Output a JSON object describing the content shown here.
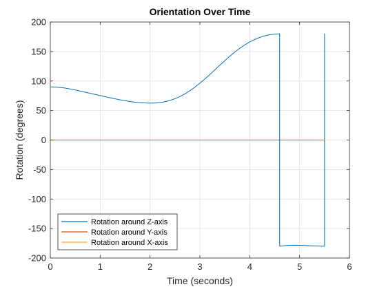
{
  "chart_data": {
    "type": "line",
    "title": "Orientation Over Time",
    "xlabel": "Time (seconds)",
    "ylabel": "Rotation (degrees)",
    "xlim": [
      0,
      6
    ],
    "ylim": [
      -200,
      200
    ],
    "xticks": [
      0,
      1,
      2,
      3,
      4,
      5,
      6
    ],
    "yticks": [
      -200,
      -150,
      -100,
      -50,
      0,
      50,
      100,
      150,
      200
    ],
    "grid": true,
    "legend_position": "bottom-left",
    "series": [
      {
        "name": "Rotation around Z-axis",
        "color": "#0072BD",
        "x": [
          0,
          0.1,
          0.2,
          0.3,
          0.4,
          0.5,
          0.6,
          0.7,
          0.8,
          0.9,
          1.0,
          1.1,
          1.2,
          1.3,
          1.4,
          1.5,
          1.6,
          1.7,
          1.8,
          1.9,
          2.0,
          2.1,
          2.2,
          2.3,
          2.4,
          2.5,
          2.6,
          2.7,
          2.8,
          2.9,
          3.0,
          3.1,
          3.2,
          3.3,
          3.4,
          3.5,
          3.6,
          3.7,
          3.8,
          3.9,
          4.0,
          4.1,
          4.2,
          4.3,
          4.4,
          4.5,
          4.6,
          4.6,
          4.7,
          4.8,
          4.9,
          5.0,
          5.1,
          5.2,
          5.3,
          5.4,
          5.5,
          5.5
        ],
        "y": [
          90,
          89.8,
          89.1,
          88,
          86.5,
          84.8,
          83,
          81.1,
          79.2,
          77.3,
          75.4,
          73.5,
          71.6,
          69.8,
          68.1,
          66.6,
          65.3,
          64.2,
          63.3,
          62.8,
          62.6,
          62.8,
          63.6,
          65,
          67.1,
          70,
          73.7,
          78.2,
          83.6,
          89.6,
          96.3,
          103.5,
          111.1,
          118.9,
          126.8,
          134.6,
          142.1,
          149.1,
          155.5,
          161.2,
          166.2,
          170.4,
          173.9,
          176.6,
          178.4,
          179.5,
          180,
          -180,
          -179,
          -178.5,
          -178.3,
          -178.4,
          -178.7,
          -179.1,
          -179.5,
          -179.8,
          -180,
          180
        ]
      },
      {
        "name": "Rotation around Y-axis",
        "color": "#D95319",
        "x": [
          0,
          5.5
        ],
        "y": [
          0,
          0
        ]
      },
      {
        "name": "Rotation around X-axis",
        "color": "#EDB120",
        "x": [
          0,
          5.5
        ],
        "y": [
          0,
          0
        ]
      }
    ]
  }
}
